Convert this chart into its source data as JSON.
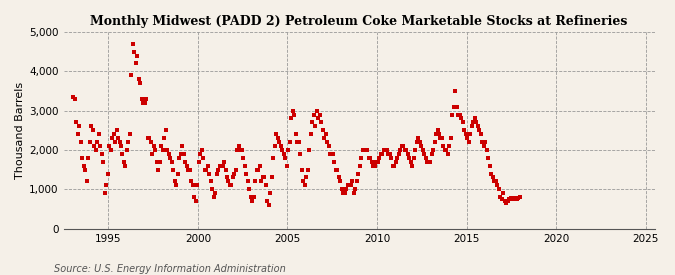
{
  "title": "Monthly Midwest (PADD 2) Petroleum Coke Marketable Stocks at Refineries",
  "ylabel": "Thousand Barrels",
  "source": "Source: U.S. Energy Information Administration",
  "background_color": "#F5F0E8",
  "marker_color": "#CC0000",
  "marker": "s",
  "marker_size": 2.2,
  "xlim_start": 1992.5,
  "xlim_end": 2025.5,
  "ylim": [
    0,
    5000
  ],
  "yticks": [
    0,
    1000,
    2000,
    3000,
    4000,
    5000
  ],
  "xticks": [
    1995,
    2000,
    2005,
    2010,
    2015,
    2020,
    2025
  ],
  "start_year": 1993,
  "start_month": 1,
  "values": [
    3350,
    3300,
    2700,
    2400,
    2600,
    2200,
    1800,
    1600,
    1500,
    1200,
    1800,
    2200,
    2600,
    2500,
    2100,
    2000,
    2200,
    2400,
    2100,
    1900,
    1700,
    900,
    1100,
    1400,
    2100,
    2000,
    2300,
    2400,
    2200,
    2500,
    2300,
    2200,
    2100,
    1900,
    1700,
    1600,
    2000,
    2200,
    2400,
    3900,
    4700,
    4500,
    4200,
    4400,
    3800,
    3700,
    3300,
    3200,
    3200,
    3300,
    2300,
    2300,
    2200,
    1900,
    2100,
    2000,
    1700,
    1500,
    1700,
    2100,
    2000,
    2300,
    2500,
    2000,
    1900,
    1800,
    1700,
    1500,
    1200,
    1100,
    1400,
    1800,
    1900,
    2100,
    1900,
    1700,
    1600,
    1500,
    1500,
    1200,
    1100,
    800,
    700,
    1100,
    1700,
    1900,
    2000,
    1800,
    1500,
    1500,
    1600,
    1400,
    1200,
    1000,
    800,
    900,
    1400,
    1500,
    1600,
    1600,
    1600,
    1700,
    1500,
    1300,
    1200,
    1100,
    1100,
    1300,
    1400,
    1500,
    2000,
    2100,
    2000,
    2000,
    1800,
    1600,
    1400,
    1200,
    1000,
    800,
    700,
    800,
    1200,
    1500,
    1500,
    1600,
    1200,
    1300,
    1300,
    1100,
    700,
    600,
    900,
    1300,
    1800,
    2100,
    2400,
    2300,
    2200,
    2100,
    2000,
    1900,
    1800,
    1600,
    2000,
    2200,
    2800,
    3000,
    2900,
    2400,
    2200,
    2200,
    1900,
    1500,
    1200,
    1100,
    1300,
    1500,
    2000,
    2400,
    2700,
    2900,
    2600,
    3000,
    2800,
    2900,
    2700,
    2500,
    2300,
    2400,
    2200,
    2100,
    1900,
    1900,
    1900,
    1700,
    1500,
    1500,
    1300,
    1200,
    1000,
    900,
    900,
    1000,
    1100,
    1100,
    1100,
    1200,
    900,
    1000,
    1200,
    1400,
    1600,
    1800,
    2000,
    2000,
    2000,
    2000,
    1800,
    1800,
    1700,
    1600,
    1600,
    1700,
    1700,
    1800,
    1900,
    1900,
    2000,
    2000,
    2000,
    1900,
    1900,
    1800,
    1600,
    1600,
    1700,
    1800,
    1900,
    2000,
    2100,
    2100,
    2000,
    2000,
    1900,
    1800,
    1700,
    1600,
    1800,
    2000,
    2200,
    2300,
    2200,
    2100,
    2000,
    1900,
    1800,
    1700,
    1700,
    1700,
    1900,
    2000,
    2200,
    2400,
    2500,
    2400,
    2300,
    2300,
    2100,
    2000,
    2000,
    1900,
    2100,
    2300,
    2900,
    3100,
    3500,
    3100,
    2900,
    2900,
    2800,
    2700,
    2500,
    2400,
    2300,
    2200,
    2400,
    2600,
    2700,
    2800,
    2700,
    2600,
    2500,
    2400,
    2200,
    2100,
    2200,
    2000,
    1800,
    1600,
    1400,
    1300,
    1200,
    1200,
    1100,
    1000,
    800,
    750,
    900,
    700,
    650,
    700,
    750,
    780,
    750,
    780,
    760,
    750,
    780,
    800
  ]
}
